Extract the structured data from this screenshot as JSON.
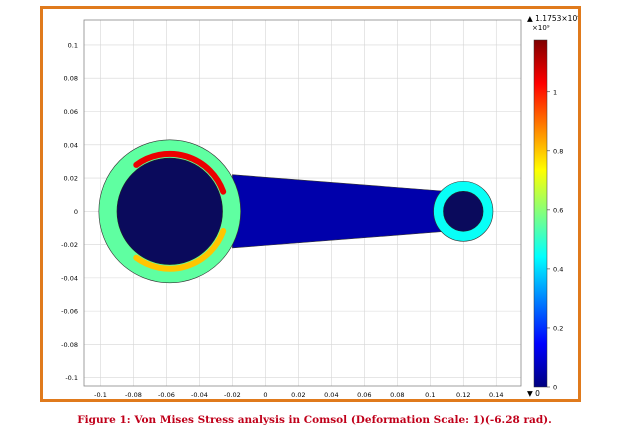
{
  "figure": {
    "caption": "Figure 1: Von Mises Stress analysis in Comsol (Deformation Scale: 1)(-6.28 rad).",
    "caption_color": "#c0001a",
    "frame_color": "#e07a1c"
  },
  "chart_data": {
    "type": "heatmap",
    "title": "",
    "xlabel": "",
    "ylabel": "",
    "xlim": [
      -0.11,
      0.155
    ],
    "ylim": [
      -0.105,
      0.115
    ],
    "x_ticks": [
      -0.1,
      -0.08,
      -0.06,
      -0.04,
      -0.02,
      0,
      0.02,
      0.04,
      0.06,
      0.08,
      0.1,
      0.12,
      0.14
    ],
    "y_ticks": [
      0.1,
      0.08,
      0.06,
      0.04,
      0.02,
      0,
      -0.02,
      -0.04,
      -0.06,
      -0.08,
      -0.1
    ],
    "grid": true,
    "colorbar": {
      "max_label": "▲ 1.1753×10⁹",
      "exponent_label": "×10⁹",
      "min_label": "▼ 0",
      "ticks": [
        1,
        0.8,
        0.6,
        0.4,
        0.2,
        0
      ],
      "range": [
        0,
        1.1753
      ],
      "colormap": "rainbow",
      "colors": [
        "#00007f",
        "#0000ff",
        "#0080ff",
        "#00ffff",
        "#80ff80",
        "#ffff00",
        "#ff8000",
        "#ff0000",
        "#7f0000"
      ]
    },
    "geometry": {
      "big_end": {
        "center": [
          -0.058,
          0.0
        ],
        "outer_radius": 0.043,
        "hole_radius": 0.032
      },
      "small_end": {
        "center": [
          0.12,
          0.0
        ],
        "outer_radius": 0.018,
        "hole_radius": 0.012
      },
      "shank": {
        "x_start": -0.02,
        "x_end": 0.11,
        "half_height_start": 0.022,
        "half_height_end": 0.012
      },
      "hole_color": "#0a0a5c"
    },
    "stress_regions": [
      {
        "part": "shank",
        "stress": 0.05
      },
      {
        "part": "big-end-ring",
        "stress": 0.55
      },
      {
        "part": "small-end-ring",
        "stress": 0.45
      },
      {
        "part": "hole-edge-top",
        "stress": 1.05
      },
      {
        "part": "hole-edge-bottom",
        "stress": 0.8
      }
    ]
  }
}
